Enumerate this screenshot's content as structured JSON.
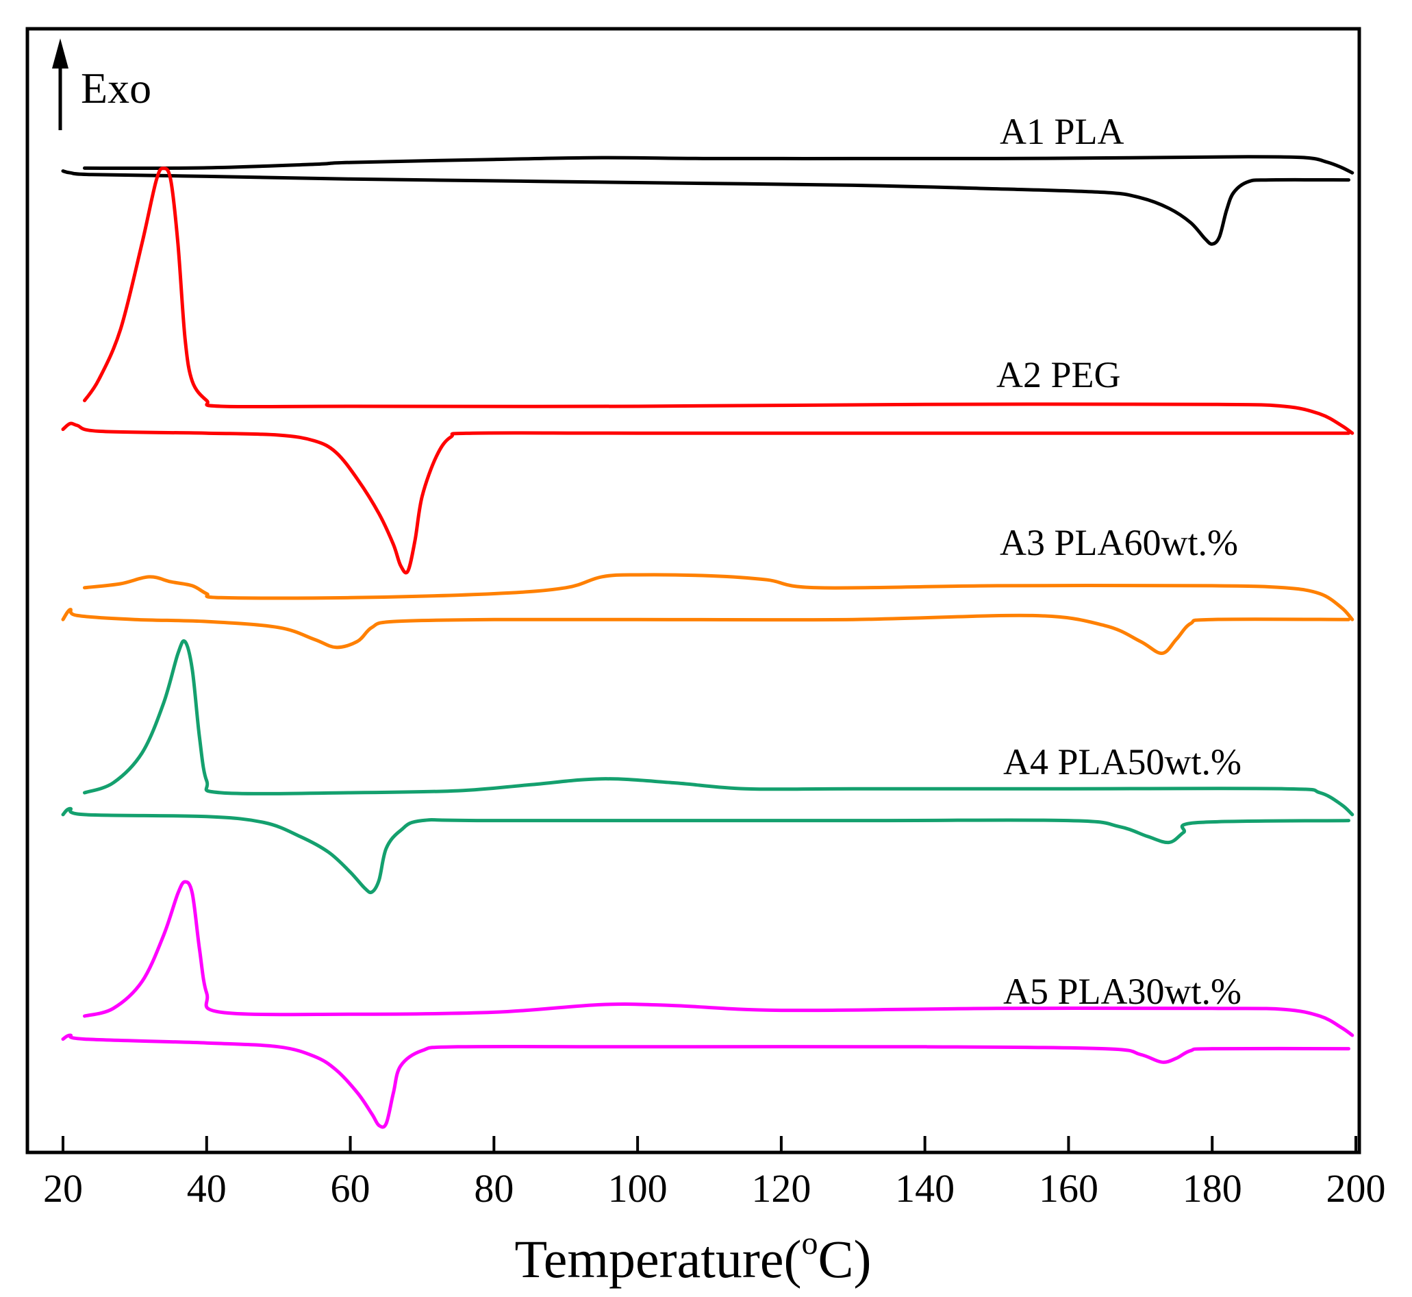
{
  "chart_data": {
    "type": "line",
    "xlabel": "Temperature(",
    "xlabel_superscript": "o",
    "xlabel_unit": "C)",
    "ylabel": "",
    "xlim": [
      20,
      200
    ],
    "x_ticks": [
      20,
      40,
      60,
      80,
      100,
      120,
      140,
      160,
      180,
      200
    ],
    "y_ticks_shown": false,
    "grid": false,
    "legend": "none",
    "indicator": {
      "label": "Exo",
      "arrow_direction": "up"
    },
    "series": [
      {
        "name": "A1 PLA",
        "color": "#000000",
        "cooling": [
          [
            23,
            0.06
          ],
          [
            40,
            0.08
          ],
          [
            55,
            0.28
          ],
          [
            60,
            0.38
          ],
          [
            80,
            0.55
          ],
          [
            95,
            0.65
          ],
          [
            110,
            0.6
          ],
          [
            130,
            0.6
          ],
          [
            150,
            0.6
          ],
          [
            170,
            0.65
          ],
          [
            185,
            0.7
          ],
          [
            193,
            0.65
          ],
          [
            196,
            0.4
          ],
          [
            198,
            0.1
          ],
          [
            199.5,
            -0.2
          ]
        ],
        "heating": [
          [
            20,
            -0.1
          ],
          [
            21,
            -0.2
          ],
          [
            24,
            -0.3
          ],
          [
            40,
            -0.4
          ],
          [
            60,
            -0.55
          ],
          [
            80,
            -0.65
          ],
          [
            100,
            -0.75
          ],
          [
            130,
            -0.9
          ],
          [
            150,
            -1.1
          ],
          [
            165,
            -1.3
          ],
          [
            170,
            -1.6
          ],
          [
            174,
            -2.2
          ],
          [
            177,
            -3.0
          ],
          [
            179,
            -3.9
          ],
          [
            180,
            -4.2
          ],
          [
            181,
            -3.8
          ],
          [
            182,
            -2.3
          ],
          [
            183,
            -1.3
          ],
          [
            185,
            -0.7
          ],
          [
            188,
            -0.6
          ],
          [
            199,
            -0.6
          ]
        ]
      },
      {
        "name": "A2 PEG",
        "color": "#ff0000",
        "cooling": [
          [
            23,
            0.3
          ],
          [
            25,
            1.4
          ],
          [
            28,
            4.0
          ],
          [
            31,
            8.5
          ],
          [
            33,
            11.8
          ],
          [
            34,
            12.4
          ],
          [
            35,
            11.8
          ],
          [
            36,
            8.5
          ],
          [
            37,
            3.5
          ],
          [
            38,
            1.3
          ],
          [
            40,
            0.3
          ],
          [
            42,
            0.0
          ],
          [
            60,
            0.0
          ],
          [
            100,
            0.0
          ],
          [
            140,
            0.1
          ],
          [
            180,
            0.1
          ],
          [
            190,
            0.0
          ],
          [
            195,
            -0.4
          ],
          [
            198,
            -1.0
          ],
          [
            199.5,
            -1.4
          ]
        ],
        "heating": [
          [
            20,
            -1.2
          ],
          [
            21,
            -0.9
          ],
          [
            22,
            -1.0
          ],
          [
            25,
            -1.3
          ],
          [
            40,
            -1.4
          ],
          [
            50,
            -1.5
          ],
          [
            55,
            -1.8
          ],
          [
            58,
            -2.4
          ],
          [
            61,
            -3.8
          ],
          [
            64,
            -5.6
          ],
          [
            66,
            -7.2
          ],
          [
            67,
            -8.3
          ],
          [
            68,
            -8.6
          ],
          [
            69,
            -7.0
          ],
          [
            70,
            -4.7
          ],
          [
            72,
            -2.6
          ],
          [
            74,
            -1.6
          ],
          [
            77,
            -1.4
          ],
          [
            100,
            -1.4
          ],
          [
            150,
            -1.4
          ],
          [
            199,
            -1.4
          ]
        ]
      },
      {
        "name": "A3 PLA60wt.%",
        "color": "#ff8000",
        "cooling": [
          [
            23,
            -0.2
          ],
          [
            28,
            0.0
          ],
          [
            32,
            0.35
          ],
          [
            35,
            0.1
          ],
          [
            38,
            -0.1
          ],
          [
            40,
            -0.5
          ],
          [
            42,
            -0.7
          ],
          [
            60,
            -0.7
          ],
          [
            80,
            -0.5
          ],
          [
            90,
            -0.2
          ],
          [
            95,
            0.35
          ],
          [
            100,
            0.45
          ],
          [
            110,
            0.4
          ],
          [
            118,
            0.2
          ],
          [
            125,
            -0.2
          ],
          [
            150,
            -0.1
          ],
          [
            180,
            -0.1
          ],
          [
            190,
            -0.2
          ],
          [
            195,
            -0.5
          ],
          [
            198,
            -1.2
          ],
          [
            199.5,
            -1.8
          ]
        ],
        "heating": [
          [
            20,
            -1.8
          ],
          [
            21,
            -1.3
          ],
          [
            22,
            -1.6
          ],
          [
            30,
            -1.8
          ],
          [
            40,
            -1.9
          ],
          [
            50,
            -2.2
          ],
          [
            55,
            -2.8
          ],
          [
            58,
            -3.2
          ],
          [
            61,
            -2.9
          ],
          [
            63,
            -2.2
          ],
          [
            66,
            -1.9
          ],
          [
            80,
            -1.8
          ],
          [
            100,
            -1.8
          ],
          [
            130,
            -1.8
          ],
          [
            155,
            -1.6
          ],
          [
            165,
            -2.1
          ],
          [
            170,
            -2.9
          ],
          [
            173,
            -3.5
          ],
          [
            175,
            -2.8
          ],
          [
            177,
            -2.0
          ],
          [
            180,
            -1.8
          ],
          [
            199,
            -1.8
          ]
        ]
      },
      {
        "name": "A4 PLA50wt.%",
        "color": "#14a06e",
        "cooling": [
          [
            23,
            0.0
          ],
          [
            27,
            0.5
          ],
          [
            31,
            2.0
          ],
          [
            34,
            4.5
          ],
          [
            36,
            7.0
          ],
          [
            37,
            7.6
          ],
          [
            38,
            6.2
          ],
          [
            39,
            2.8
          ],
          [
            40,
            0.6
          ],
          [
            42,
            0.0
          ],
          [
            60,
            0.0
          ],
          [
            75,
            0.1
          ],
          [
            85,
            0.4
          ],
          [
            95,
            0.7
          ],
          [
            105,
            0.5
          ],
          [
            115,
            0.2
          ],
          [
            130,
            0.2
          ],
          [
            160,
            0.2
          ],
          [
            190,
            0.2
          ],
          [
            195,
            0.0
          ],
          [
            198,
            -0.6
          ],
          [
            199.5,
            -1.1
          ]
        ],
        "heating": [
          [
            20,
            -1.1
          ],
          [
            21,
            -0.8
          ],
          [
            23,
            -1.1
          ],
          [
            40,
            -1.2
          ],
          [
            48,
            -1.5
          ],
          [
            53,
            -2.2
          ],
          [
            57,
            -3.0
          ],
          [
            60,
            -4.0
          ],
          [
            62,
            -4.8
          ],
          [
            63,
            -5.0
          ],
          [
            64,
            -4.4
          ],
          [
            65,
            -2.8
          ],
          [
            67,
            -1.9
          ],
          [
            70,
            -1.4
          ],
          [
            80,
            -1.4
          ],
          [
            130,
            -1.4
          ],
          [
            160,
            -1.4
          ],
          [
            167,
            -1.7
          ],
          [
            171,
            -2.2
          ],
          [
            174,
            -2.5
          ],
          [
            176,
            -2.0
          ],
          [
            178,
            -1.5
          ],
          [
            199,
            -1.4
          ]
        ]
      },
      {
        "name": "A5 PLA30wt.%",
        "color": "#ff00ff",
        "cooling": [
          [
            23,
            0.0
          ],
          [
            27,
            0.4
          ],
          [
            31,
            1.8
          ],
          [
            34,
            4.2
          ],
          [
            36,
            6.4
          ],
          [
            37,
            7.0
          ],
          [
            38,
            6.4
          ],
          [
            39,
            3.5
          ],
          [
            40,
            1.2
          ],
          [
            42,
            0.2
          ],
          [
            60,
            0.1
          ],
          [
            80,
            0.2
          ],
          [
            95,
            0.6
          ],
          [
            105,
            0.55
          ],
          [
            120,
            0.3
          ],
          [
            150,
            0.4
          ],
          [
            180,
            0.4
          ],
          [
            190,
            0.35
          ],
          [
            195,
            0.0
          ],
          [
            198,
            -0.6
          ],
          [
            199.5,
            -1.0
          ]
        ],
        "heating": [
          [
            20,
            -1.2
          ],
          [
            21,
            -1.0
          ],
          [
            23,
            -1.2
          ],
          [
            40,
            -1.4
          ],
          [
            50,
            -1.6
          ],
          [
            55,
            -2.1
          ],
          [
            58,
            -2.8
          ],
          [
            61,
            -4.0
          ],
          [
            63,
            -5.1
          ],
          [
            64,
            -5.7
          ],
          [
            65,
            -5.6
          ],
          [
            66,
            -4.0
          ],
          [
            67,
            -2.6
          ],
          [
            70,
            -1.8
          ],
          [
            75,
            -1.6
          ],
          [
            100,
            -1.6
          ],
          [
            140,
            -1.6
          ],
          [
            165,
            -1.7
          ],
          [
            170,
            -2.0
          ],
          [
            173,
            -2.4
          ],
          [
            175,
            -2.2
          ],
          [
            177,
            -1.8
          ],
          [
            180,
            -1.7
          ],
          [
            199,
            -1.7
          ]
        ]
      }
    ]
  }
}
